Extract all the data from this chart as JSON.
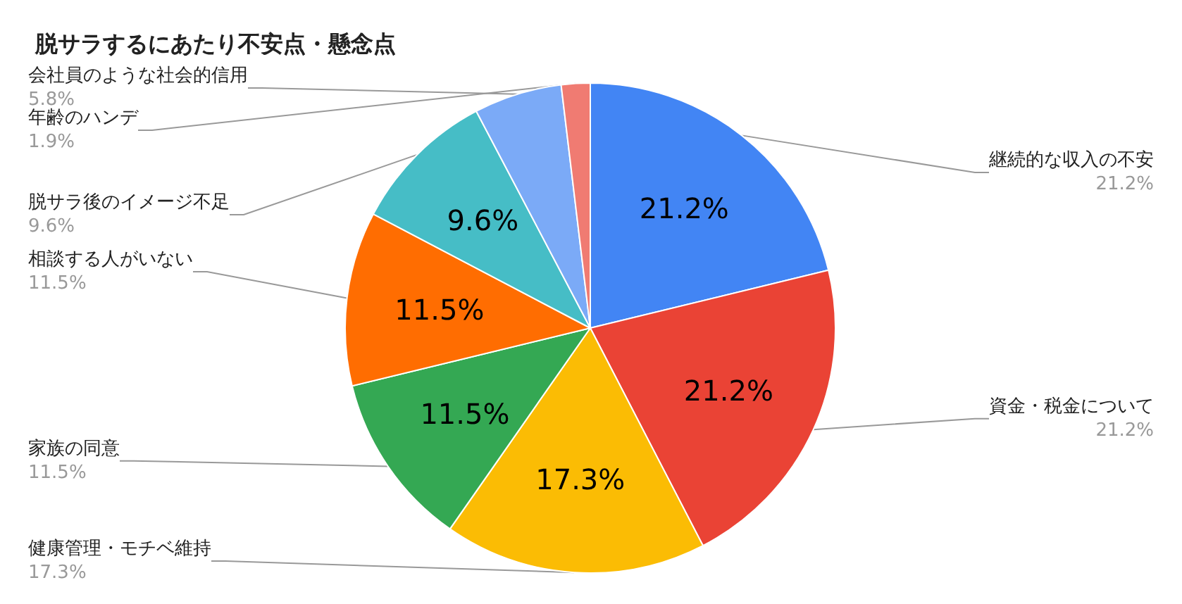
{
  "chart_data": {
    "type": "pie",
    "title": "脱サラするにあたり不安点・懸念点",
    "categories": [
      "継続的な収入の不安",
      "資金・税金について",
      "健康管理・モチベ維持",
      "家族の同意",
      "相談する人がいない",
      "脱サラ後のイメージ不足",
      "会社員のような社会的信用",
      "年齢のハンデ"
    ],
    "values": [
      21.2,
      21.2,
      17.3,
      11.5,
      11.5,
      9.6,
      5.8,
      1.9
    ],
    "colors": [
      "#4285f4",
      "#ea4335",
      "#fbbc04",
      "#34a853",
      "#ff6d01",
      "#46bdc6",
      "#7baaf7",
      "#f07b72"
    ],
    "value_labels": [
      "21.2%",
      "21.2%",
      "17.3%",
      "11.5%",
      "11.5%",
      "9.6%",
      "5.8%",
      "1.9%"
    ],
    "legend": false
  }
}
